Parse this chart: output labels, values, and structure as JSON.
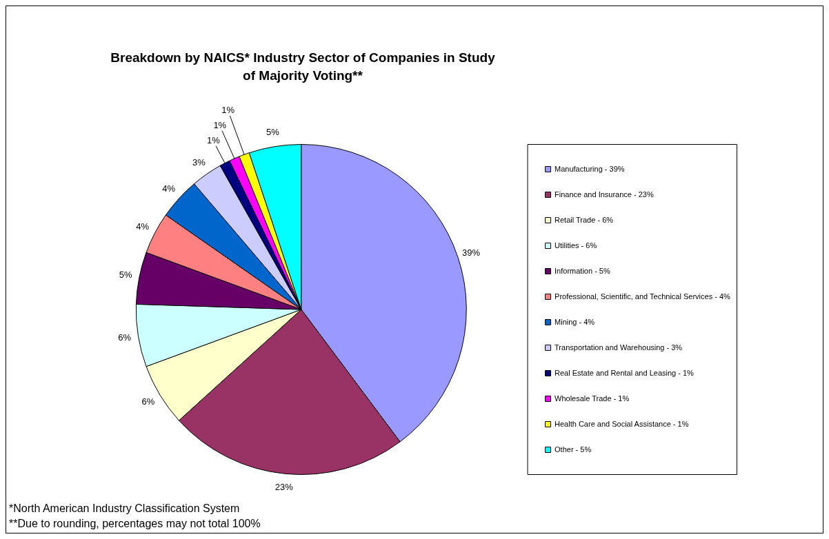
{
  "chart_data": {
    "type": "pie",
    "title": "Breakdown by NAICS* Industry Sector of Companies in Study of Majority Voting**",
    "categories": [
      "Manufacturing - 39%",
      "Finance and Insurance - 23%",
      "Retail Trade - 6%",
      "Utilities - 6%",
      "Information - 5%",
      "Professional, Scientific, and Technical Services - 4%",
      "Mining - 4%",
      "Transportation and Warehousing - 3%",
      "Real Estate and Rental and Leasing - 1%",
      "Wholesale Trade - 1%",
      "Health Care and Social Assistance - 1%",
      "Other - 5%"
    ],
    "values": [
      39,
      23,
      6,
      6,
      5,
      4,
      4,
      3,
      1,
      1,
      1,
      5
    ],
    "value_labels": [
      "39%",
      "23%",
      "6%",
      "6%",
      "5%",
      "4%",
      "4%",
      "3%",
      "1%",
      "1%",
      "1%",
      "5%"
    ],
    "colors": [
      "#9999ff",
      "#993366",
      "#ffffcc",
      "#ccffff",
      "#660066",
      "#ff8080",
      "#0066cc",
      "#ccccff",
      "#000080",
      "#ff00ff",
      "#ffff00",
      "#00ffff"
    ],
    "legend": "right",
    "annotations": [
      "*North American Industry Classification System",
      "**Due to rounding, percentages may not total 100%"
    ]
  }
}
